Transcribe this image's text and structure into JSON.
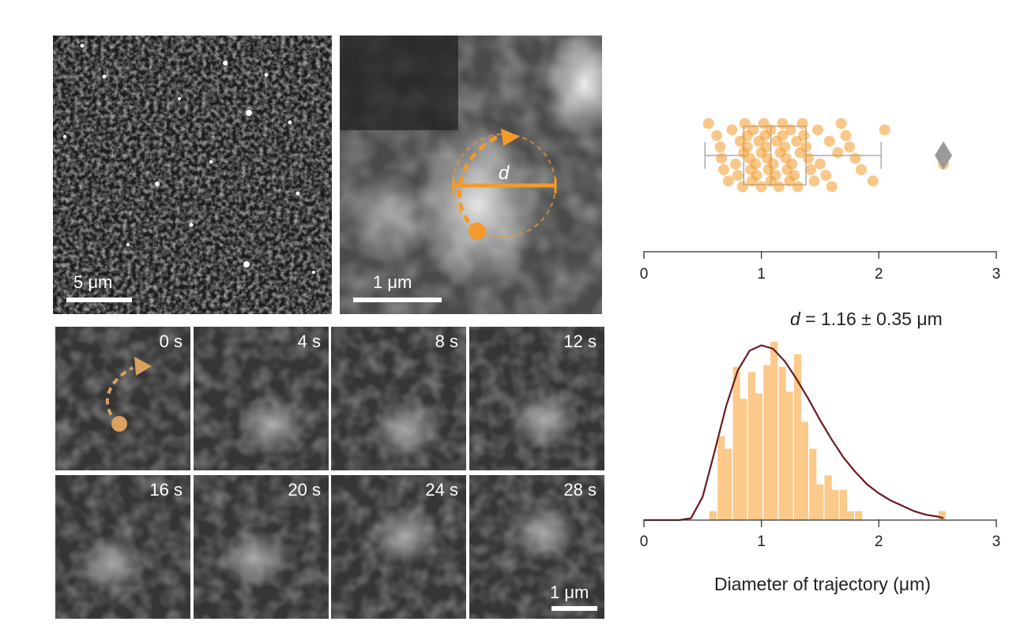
{
  "panel_a": {
    "scale_label": "5 μm"
  },
  "panel_b": {
    "scale_label": "1 μm",
    "d_label": "d"
  },
  "time_series": {
    "frames": [
      "0 s",
      "4 s",
      "8 s",
      "12 s",
      "16 s",
      "20 s",
      "24 s",
      "28 s"
    ],
    "scale_label": "1 μm"
  },
  "colors": {
    "accent": "#f39a2b",
    "fit_curve": "#6b1a1f",
    "hist_bar": "#fbc98a",
    "outlier": "#9a9a9a"
  },
  "chart_data": [
    {
      "type": "scatter",
      "subtype": "strip plot with box plot",
      "x_ticks": [
        0,
        1,
        2,
        3
      ],
      "xlim": [
        0,
        3
      ],
      "box": {
        "whisker_low": 0.52,
        "q1": 0.85,
        "median": 1.08,
        "q3": 1.38,
        "whisker_high": 2.02
      },
      "outlier": 2.55,
      "points": [
        0.55,
        0.62,
        0.65,
        0.66,
        0.68,
        0.72,
        0.75,
        0.78,
        0.8,
        0.82,
        0.84,
        0.85,
        0.86,
        0.88,
        0.88,
        0.9,
        0.91,
        0.92,
        0.93,
        0.95,
        0.96,
        0.98,
        1.0,
        1.0,
        1.02,
        1.03,
        1.04,
        1.05,
        1.06,
        1.08,
        1.08,
        1.1,
        1.12,
        1.13,
        1.15,
        1.16,
        1.18,
        1.18,
        1.2,
        1.21,
        1.22,
        1.24,
        1.25,
        1.26,
        1.28,
        1.3,
        1.31,
        1.33,
        1.35,
        1.36,
        1.38,
        1.4,
        1.42,
        1.45,
        1.48,
        1.5,
        1.55,
        1.58,
        1.6,
        1.65,
        1.68,
        1.72,
        1.75,
        1.8,
        1.85,
        1.95,
        2.05,
        2.55
      ]
    },
    {
      "type": "bar",
      "subtype": "histogram with fitted curve",
      "annotation": "d = 1.16 ± 0.35 μm",
      "annotation_var": "d",
      "annotation_rest": " = 1.16 ± 0.35 μm",
      "xlabel": "Diameter of trajectory (μm)",
      "x_ticks": [
        0,
        1,
        2,
        3
      ],
      "xlim": [
        0,
        3
      ],
      "bin_width": 0.065,
      "bin_centers": [
        0.59,
        0.66,
        0.72,
        0.79,
        0.85,
        0.92,
        0.98,
        1.05,
        1.11,
        1.18,
        1.24,
        1.31,
        1.37,
        1.44,
        1.5,
        1.57,
        1.63,
        1.7,
        1.76,
        1.83,
        1.89,
        1.96,
        2.02,
        2.09,
        2.15,
        2.22,
        2.28,
        2.35,
        2.41,
        2.48,
        2.54
      ],
      "counts": [
        0.05,
        0.47,
        0.4,
        0.86,
        0.68,
        0.83,
        0.71,
        0.87,
        1.0,
        0.86,
        0.72,
        0.93,
        0.55,
        0.4,
        0.2,
        0.25,
        0.17,
        0.17,
        0.05,
        0.05,
        0,
        0,
        0,
        0,
        0,
        0,
        0,
        0,
        0,
        0,
        0.05
      ],
      "fit_curve": {
        "x": [
          0.3,
          0.4,
          0.5,
          0.6,
          0.7,
          0.8,
          0.9,
          1.0,
          1.1,
          1.2,
          1.3,
          1.4,
          1.5,
          1.6,
          1.7,
          1.8,
          1.9,
          2.0,
          2.1,
          2.2,
          2.3,
          2.4,
          2.5,
          2.55
        ],
        "y": [
          0.0,
          0.01,
          0.13,
          0.38,
          0.64,
          0.84,
          0.95,
          0.98,
          0.96,
          0.89,
          0.79,
          0.68,
          0.56,
          0.45,
          0.35,
          0.27,
          0.2,
          0.15,
          0.11,
          0.08,
          0.05,
          0.03,
          0.02,
          0.01
        ]
      }
    }
  ]
}
